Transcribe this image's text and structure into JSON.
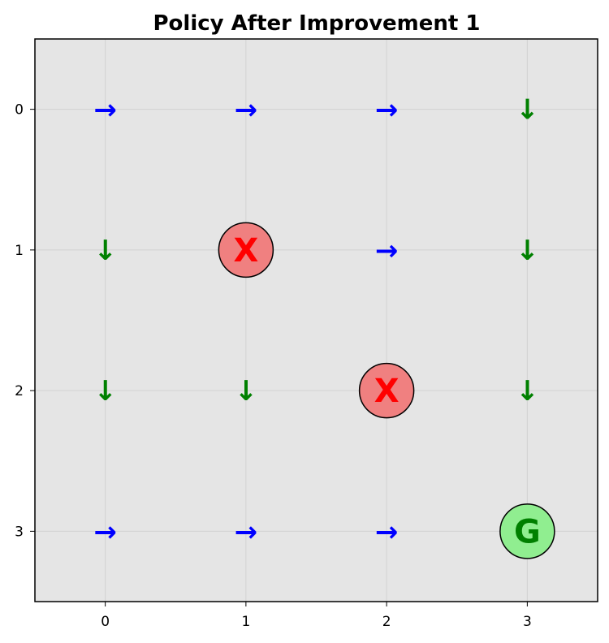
{
  "chart_data": {
    "type": "heatmap",
    "title": "Policy After Improvement 1",
    "xlabel": "",
    "ylabel": "",
    "xlim": [
      -0.5,
      3.5
    ],
    "ylim": [
      3.5,
      -0.5
    ],
    "y_inverted": true,
    "grid": true,
    "x_ticks": [
      "0",
      "1",
      "2",
      "3"
    ],
    "y_ticks": [
      "0",
      "1",
      "2",
      "3"
    ],
    "background_color": "#e5e5e5",
    "policy": [
      [
        "→",
        "→",
        "→",
        "↓"
      ],
      [
        "↓",
        "X",
        "→",
        "↓"
      ],
      [
        "↓",
        "↓",
        "X",
        "↓"
      ],
      [
        "→",
        "→",
        "→",
        "G"
      ]
    ],
    "arrow_colors": {
      "→": "#0000ff",
      "↓": "#008000"
    },
    "markers": [
      {
        "row": 1,
        "col": 1,
        "label": "X",
        "fill": "#f08080",
        "text_color": "#ff0000"
      },
      {
        "row": 2,
        "col": 2,
        "label": "X",
        "fill": "#f08080",
        "text_color": "#ff0000"
      },
      {
        "row": 3,
        "col": 3,
        "label": "G",
        "fill": "#90ee90",
        "text_color": "#008000"
      }
    ]
  }
}
